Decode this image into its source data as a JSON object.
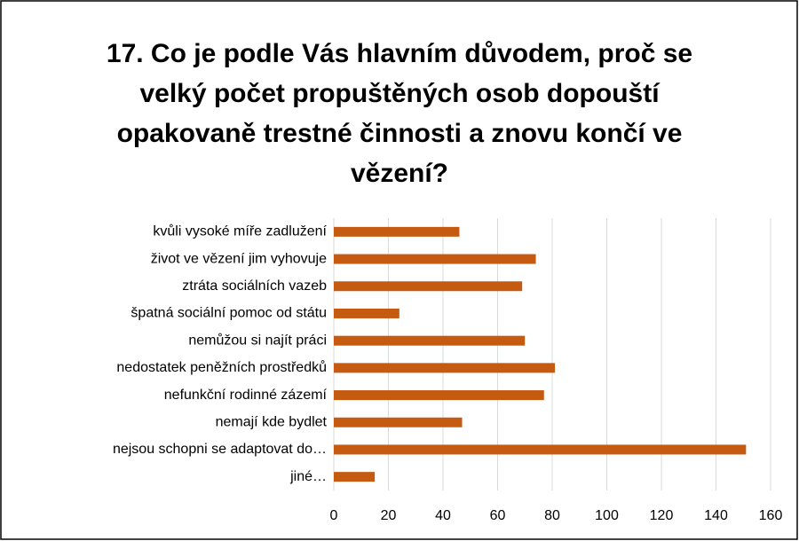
{
  "chart_data": {
    "type": "bar",
    "orientation": "horizontal",
    "title": "17. Co je podle Vás hlavním důvodem, proč se velký počet propuštěných osob dopouští opakovaně trestné činnosti a znovu končí  ve vězení?",
    "categories": [
      "kvůli vysoké míře zadlužení",
      "život ve vězení jim vyhovuje",
      "ztráta sociálních vazeb",
      "špatná sociální pomoc od státu",
      "nemůžou si najít práci",
      "nedostatek peněžních prostředků",
      "nefunkční rodinné zázemí",
      "nemají kde bydlet",
      "nejsou schopni se adaptovat do…",
      "jiné…"
    ],
    "values": [
      46,
      74,
      69,
      24,
      70,
      81,
      77,
      47,
      151,
      15
    ],
    "color": "#c55a11",
    "xlim": [
      0,
      160
    ],
    "xticks": [
      0,
      20,
      40,
      60,
      80,
      100,
      120,
      140,
      160
    ],
    "grid": true
  }
}
